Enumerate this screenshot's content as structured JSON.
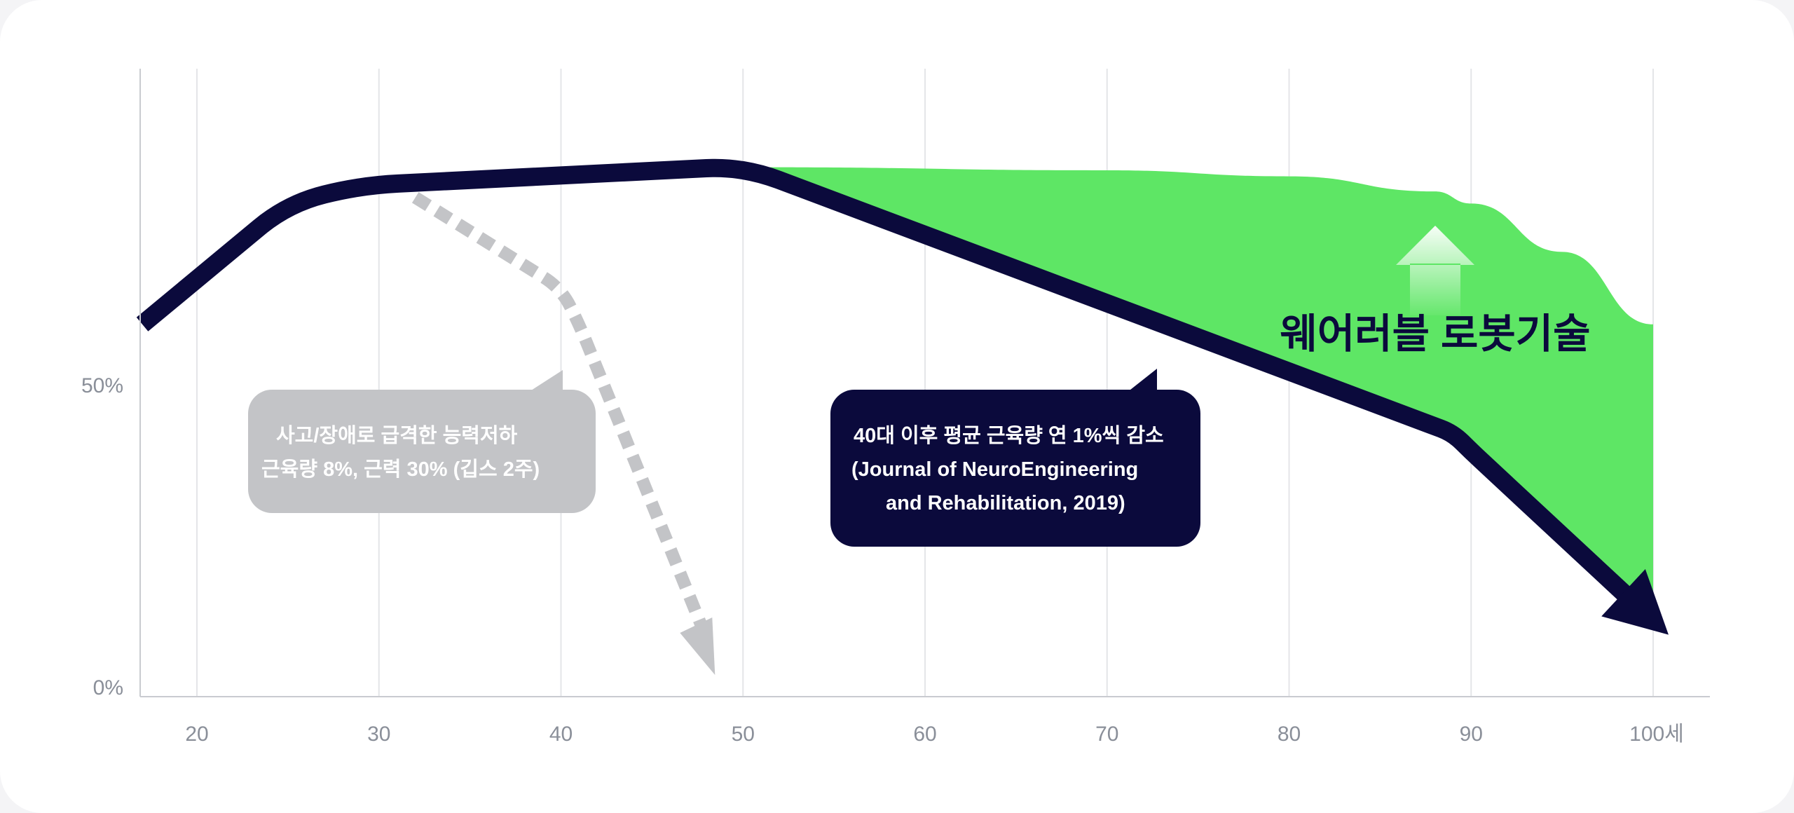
{
  "chart_data": {
    "type": "line",
    "x_ticks": [
      {
        "value": 20,
        "label": "20"
      },
      {
        "value": 30,
        "label": "30"
      },
      {
        "value": 40,
        "label": "40"
      },
      {
        "value": 50,
        "label": "50"
      },
      {
        "value": 60,
        "label": "60"
      },
      {
        "value": 70,
        "label": "70"
      },
      {
        "value": 80,
        "label": "80"
      },
      {
        "value": 90,
        "label": "90"
      },
      {
        "value": 100,
        "label": "100세"
      }
    ],
    "y_ticks": [
      {
        "value": 0,
        "label": "0%"
      },
      {
        "value": 50,
        "label": "50%"
      }
    ],
    "xlim": [
      17,
      103
    ],
    "ylim": [
      0,
      103
    ],
    "grid": true,
    "series": [
      {
        "role": "average-decline",
        "color": "#0b0a3c",
        "x": [
          17,
          25,
          29,
          49,
          51,
          89,
          90,
          100
        ],
        "y": [
          60,
          80,
          83,
          86,
          85,
          42,
          39,
          11
        ]
      },
      {
        "role": "accident-decline",
        "color": "#c3c4c7",
        "x": [
          32,
          40,
          41,
          48
        ],
        "y": [
          81,
          66,
          60,
          8
        ]
      },
      {
        "role": "wearable-robot-upper",
        "color": "#5ee665",
        "x": [
          51,
          70,
          80,
          88,
          90,
          95,
          100
        ],
        "y": [
          86,
          85.5,
          84.5,
          82,
          80,
          72,
          60
        ]
      }
    ],
    "annotations": {
      "accident": {
        "line1": "사고/장애로    급격한 능력저하",
        "line2": "근육량 8%, 근력 30%    (깁스 2주)"
      },
      "average": {
        "line1": "40대 이후 평균 근육량 연 1%씩 감소",
        "line2": "(Journal of NeuroEngineering",
        "line3": "and Rehabilitation, 2019)"
      },
      "technology_label": "웨어러블 로봇기술"
    },
    "colors": {
      "navy": "#0b0a3c",
      "gray": "#c3c4c7",
      "green": "#5ee665",
      "grid": "#e4e5e8",
      "axis": "#c9cbd0",
      "tick_text": "#8a8f99"
    }
  }
}
